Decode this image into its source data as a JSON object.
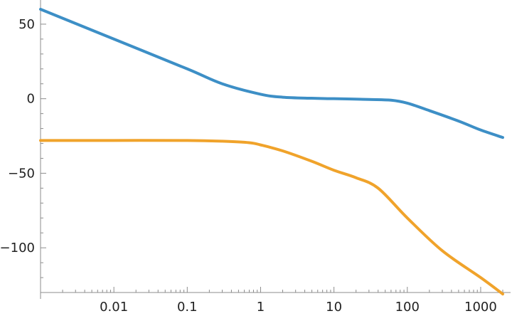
{
  "chart_data": {
    "type": "line",
    "title": "",
    "xlabel": "",
    "ylabel": "",
    "x_scale": "log",
    "xlim": [
      0.001,
      2000
    ],
    "ylim": [
      -130,
      60
    ],
    "grid": false,
    "legend": "none",
    "x_ticks": [
      {
        "value": 0.01,
        "label": "0.01"
      },
      {
        "value": 0.1,
        "label": "0.1"
      },
      {
        "value": 1,
        "label": "1"
      },
      {
        "value": 10,
        "label": "10"
      },
      {
        "value": 100,
        "label": "100"
      },
      {
        "value": 1000,
        "label": "1000"
      }
    ],
    "y_ticks": [
      {
        "value": 50,
        "label": "50"
      },
      {
        "value": 0,
        "label": "0"
      },
      {
        "value": -50,
        "label": "−50"
      },
      {
        "value": -100,
        "label": "−100"
      }
    ],
    "series": [
      {
        "color": "#3d8fc6",
        "x": [
          0.001,
          0.01,
          0.1,
          0.3,
          1,
          2,
          5,
          10,
          30,
          60,
          100,
          200,
          500,
          1000,
          2000
        ],
        "y": [
          60,
          40,
          20,
          10,
          3,
          1,
          0.3,
          0,
          -0.5,
          -1,
          -3,
          -8,
          -15,
          -21,
          -26
        ]
      },
      {
        "color": "#f0a32b",
        "x": [
          0.001,
          0.01,
          0.1,
          0.3,
          0.7,
          1,
          2,
          5,
          10,
          20,
          40,
          100,
          300,
          1000,
          2000
        ],
        "y": [
          -28,
          -28,
          -28,
          -28.5,
          -29.5,
          -31,
          -35,
          -42,
          -48,
          -53,
          -60,
          -80,
          -102,
          -120,
          -131
        ]
      }
    ]
  }
}
